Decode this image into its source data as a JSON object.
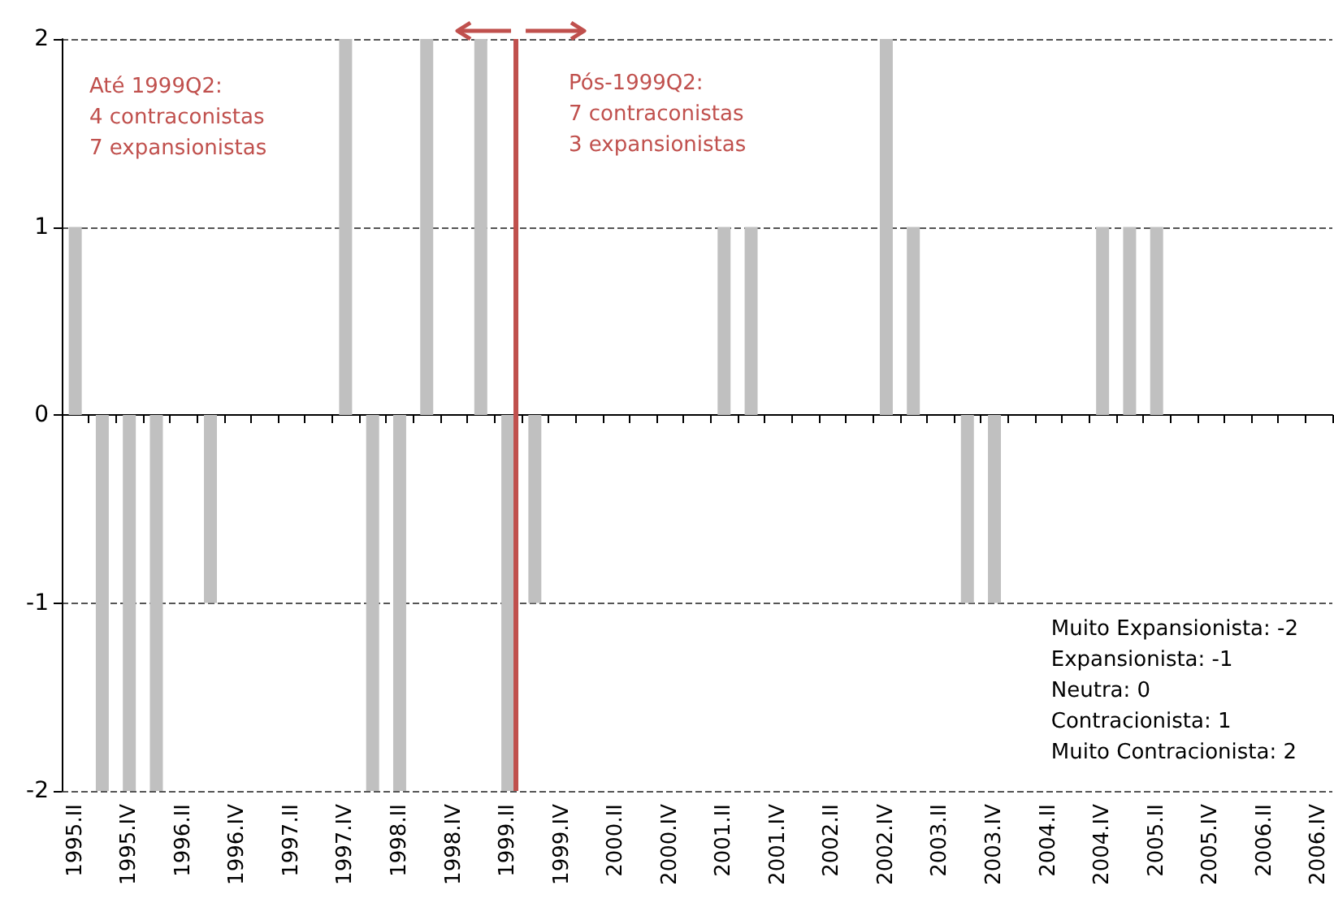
{
  "chart_data": {
    "type": "bar",
    "categories": [
      "1995.II",
      null,
      "1995.IV",
      null,
      "1996.II",
      null,
      "1996.IV",
      null,
      "1997.II",
      null,
      "1997.IV",
      null,
      "1998.II",
      null,
      "1998.IV",
      null,
      "1999.II",
      null,
      "1999.IV",
      null,
      "2000.II",
      null,
      "2000.IV",
      null,
      "2001.II",
      null,
      "2001.IV",
      null,
      "2002.II",
      null,
      "2002.IV",
      null,
      "2003.II",
      null,
      "2003.IV",
      null,
      "2004.II",
      null,
      "2004.IV",
      null,
      "2005.II",
      null,
      "2005.IV",
      null,
      "2006.II",
      null,
      "2006.IV"
    ],
    "values": [
      1,
      -2,
      -2,
      -2,
      0,
      -1,
      0,
      0,
      0,
      0,
      2,
      -2,
      -2,
      2,
      0,
      2,
      -2,
      -1,
      0,
      0,
      0,
      0,
      0,
      0,
      1,
      1,
      0,
      0,
      0,
      0,
      2,
      1,
      0,
      -1,
      -1,
      0,
      0,
      0,
      1,
      1,
      1,
      0,
      0,
      0,
      0,
      0,
      0
    ],
    "color": "#c0c0c0",
    "ylim": [
      -2,
      2
    ],
    "yticks": [
      -2,
      -1,
      0,
      1,
      2
    ],
    "grid": "y",
    "ref_lines": [
      {
        "axis": "x",
        "value": "1999.II",
        "color": "#c0504d"
      }
    ],
    "annotations": [
      "Até 1999Q2:\n4 contraconistas\n7 expansionistas",
      "Pós-1999Q2:\n7 contraconistas\n3 expansionistas",
      "Muito Expansionista: -2\nExpansionista: -1\nNeutra: 0\nContracionista: 1\nMuito Contracionista: 2"
    ]
  }
}
